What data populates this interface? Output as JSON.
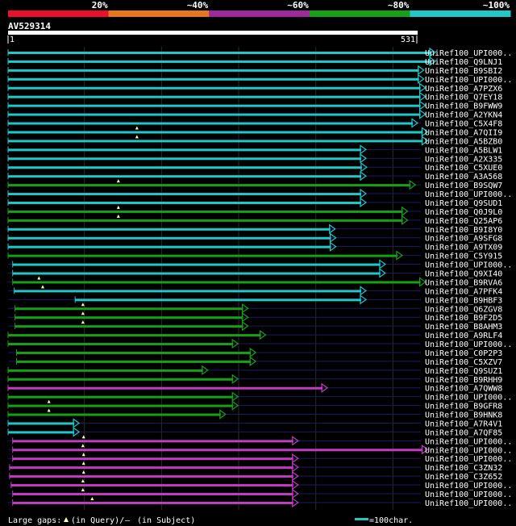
{
  "chart_data": {
    "type": "alignment-overview",
    "query": {
      "name": "AV529314",
      "start": 1,
      "end": 531
    },
    "identity_legend": [
      {
        "label": "20%",
        "color": "#e8112d"
      },
      {
        "label": "~40%",
        "color": "#e8761a"
      },
      {
        "label": "~60%",
        "color": "#9c2a9c"
      },
      {
        "label": "~80%",
        "color": "#16a016"
      },
      {
        "label": "~100%",
        "color": "#1ec8c8"
      }
    ],
    "footer": {
      "gaps_label": "Large gaps:",
      "in_query": "(in Query)/",
      "dash": "—",
      "in_subject": "(in Subject)",
      "scale_label": "=100char."
    },
    "hits": [
      {
        "label": "UniRef100_UPI000..",
        "color": "cyan",
        "start": 1,
        "end": 553,
        "ins": []
      },
      {
        "label": "UniRef100_Q9LNJ1",
        "color": "cyan",
        "start": 1,
        "end": 553,
        "ins": []
      },
      {
        "label": "UniRef100_B9SBI2",
        "color": "cyan",
        "start": 1,
        "end": 538,
        "ins": []
      },
      {
        "label": "UniRef100_UPI000..",
        "color": "cyan",
        "start": 1,
        "end": 538,
        "ins": []
      },
      {
        "label": "UniRef100_A7PZX6",
        "color": "cyan",
        "start": 1,
        "end": 540,
        "ins": []
      },
      {
        "label": "UniRef100_Q7EY18",
        "color": "cyan",
        "start": 1,
        "end": 540,
        "ins": []
      },
      {
        "label": "UniRef100_B9FWW9",
        "color": "cyan",
        "start": 1,
        "end": 540,
        "ins": []
      },
      {
        "label": "UniRef100_A2YKN4",
        "color": "cyan",
        "start": 1,
        "end": 540,
        "ins": []
      },
      {
        "label": "UniRef100_C5X4F8",
        "color": "cyan",
        "start": 1,
        "end": 530,
        "ins": []
      },
      {
        "label": "UniRef100_A7QII9",
        "color": "cyan",
        "start": 1,
        "end": 543,
        "ins": [
          168
        ]
      },
      {
        "label": "UniRef100_A5BZB0",
        "color": "cyan",
        "start": 1,
        "end": 543,
        "ins": [
          168
        ]
      },
      {
        "label": "UniRef100_A5BLW1",
        "color": "cyan",
        "start": 1,
        "end": 463,
        "ins": []
      },
      {
        "label": "UniRef100_A2X335",
        "color": "cyan",
        "start": 1,
        "end": 463,
        "ins": []
      },
      {
        "label": "UniRef100_C5XUE0",
        "color": "cyan",
        "start": 1,
        "end": 464,
        "ins": []
      },
      {
        "label": "UniRef100_A3A568",
        "color": "cyan",
        "start": 1,
        "end": 463,
        "ins": []
      },
      {
        "label": "UniRef100_B9SQW7",
        "color": "green",
        "start": 1,
        "end": 527,
        "ins": [
          144
        ]
      },
      {
        "label": "UniRef100_UPI000..",
        "color": "cyan",
        "start": 1,
        "end": 463,
        "ins": []
      },
      {
        "label": "UniRef100_Q9SUD1",
        "color": "cyan",
        "start": 1,
        "end": 463,
        "ins": []
      },
      {
        "label": "UniRef100_Q0J9L0",
        "color": "green",
        "start": 1,
        "end": 517,
        "ins": [
          144
        ]
      },
      {
        "label": "UniRef100_Q25AP6",
        "color": "green",
        "start": 1,
        "end": 517,
        "ins": [
          144
        ]
      },
      {
        "label": "UniRef100_B9I8Y0",
        "color": "cyan",
        "start": 1,
        "end": 423,
        "ins": []
      },
      {
        "label": "UniRef100_A9SFG8",
        "color": "cyan",
        "start": 1,
        "end": 424,
        "ins": []
      },
      {
        "label": "UniRef100_A9TX09",
        "color": "cyan",
        "start": 1,
        "end": 424,
        "ins": []
      },
      {
        "label": "UniRef100_C5Y915",
        "color": "green",
        "start": 1,
        "end": 510,
        "ins": []
      },
      {
        "label": "UniRef100_UPI000..",
        "color": "cyan",
        "start": 7,
        "end": 488,
        "ins": []
      },
      {
        "label": "UniRef100_Q9XI40",
        "color": "cyan",
        "start": 7,
        "end": 488,
        "ins": []
      },
      {
        "label": "UniRef100_B9RVA6",
        "color": "green",
        "start": 7,
        "end": 540,
        "ins": [
          41
        ]
      },
      {
        "label": "UniRef100_A7PFK4",
        "color": "cyan",
        "start": 9,
        "end": 463,
        "ins": [
          46
        ]
      },
      {
        "label": "UniRef100_B9HBF3",
        "color": "cyan",
        "start": 88,
        "end": 463,
        "ins": []
      },
      {
        "label": "UniRef100_Q6ZGV8",
        "color": "green",
        "start": 10,
        "end": 310,
        "ins": [
          98
        ]
      },
      {
        "label": "UniRef100_B9F2D5",
        "color": "green",
        "start": 10,
        "end": 310,
        "ins": [
          98
        ]
      },
      {
        "label": "UniRef100_B8AHM3",
        "color": "green",
        "start": 10,
        "end": 310,
        "ins": [
          98
        ]
      },
      {
        "label": "UniRef100_A9RLF4",
        "color": "green",
        "start": 1,
        "end": 333,
        "ins": []
      },
      {
        "label": "UniRef100_UPI000..",
        "color": "green",
        "start": 1,
        "end": 297,
        "ins": []
      },
      {
        "label": "UniRef100_C0P2P3",
        "color": "green",
        "start": 12,
        "end": 320,
        "ins": []
      },
      {
        "label": "UniRef100_C5XZV7",
        "color": "green",
        "start": 12,
        "end": 320,
        "ins": []
      },
      {
        "label": "UniRef100_Q9SUZ1",
        "color": "green",
        "start": 1,
        "end": 258,
        "ins": []
      },
      {
        "label": "UniRef100_B9RHH9",
        "color": "green",
        "start": 1,
        "end": 297,
        "ins": []
      },
      {
        "label": "UniRef100_A7QWW8",
        "color": "magenta",
        "start": 1,
        "end": 413,
        "ins": []
      },
      {
        "label": "UniRef100_UPI000..",
        "color": "green",
        "start": 1,
        "end": 297,
        "ins": []
      },
      {
        "label": "UniRef100_B9GFR8",
        "color": "green",
        "start": 1,
        "end": 297,
        "ins": [
          54
        ]
      },
      {
        "label": "UniRef100_B9HNK8",
        "color": "green",
        "start": 1,
        "end": 281,
        "ins": [
          54
        ]
      },
      {
        "label": "UniRef100_A7R4V1",
        "color": "cyan",
        "start": 1,
        "end": 91,
        "ins": []
      },
      {
        "label": "UniRef100_A7QF85",
        "color": "cyan",
        "start": 1,
        "end": 91,
        "ins": []
      },
      {
        "label": "UniRef100_UPI000..",
        "color": "magenta",
        "start": 7,
        "end": 375,
        "ins": [
          99
        ]
      },
      {
        "label": "UniRef100_UPI000..",
        "color": "magenta",
        "start": 7,
        "end": 543,
        "ins": [
          98
        ]
      },
      {
        "label": "UniRef100_UPI000..",
        "color": "magenta",
        "start": 7,
        "end": 375,
        "ins": [
          99
        ]
      },
      {
        "label": "UniRef100_C3ZN32",
        "color": "magenta",
        "start": 3,
        "end": 375,
        "ins": [
          99
        ]
      },
      {
        "label": "UniRef100_C3Z652",
        "color": "magenta",
        "start": 3,
        "end": 375,
        "ins": [
          99
        ]
      },
      {
        "label": "UniRef100_UPI000..",
        "color": "magenta",
        "start": 5,
        "end": 375,
        "ins": [
          98
        ]
      },
      {
        "label": "UniRef100_UPI000..",
        "color": "magenta",
        "start": 7,
        "end": 375,
        "ins": [
          98
        ]
      },
      {
        "label": "UniRef100_UPI000..",
        "color": "magenta",
        "start": 7,
        "end": 375,
        "ins": [
          110
        ]
      }
    ]
  }
}
